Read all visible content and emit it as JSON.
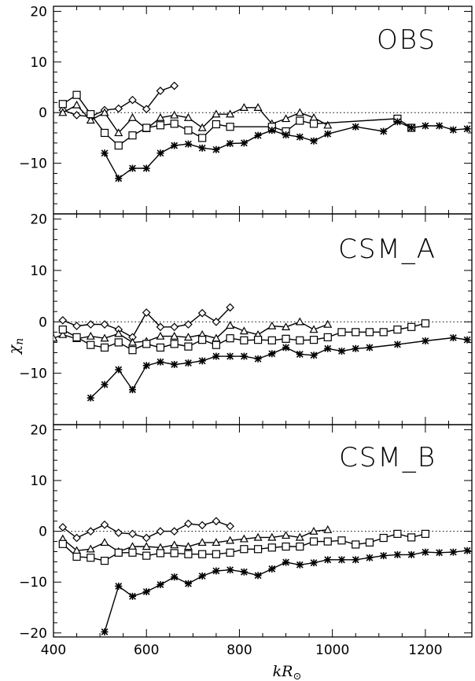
{
  "chart_data": [
    {
      "type": "line",
      "title": "OBS",
      "xlabel": "kR⊙",
      "ylabel": "χn",
      "xlim": [
        400,
        1300
      ],
      "ylim": [
        -20,
        21
      ],
      "xticks": [
        "400",
        "600",
        "800",
        "1000",
        "1200"
      ],
      "yticks": [
        "20",
        "10",
        "0",
        "−10"
      ],
      "zero_line": "dotted",
      "series": [
        {
          "marker": "diamond",
          "x": [
            420,
            450,
            480,
            510,
            540,
            570,
            600,
            630,
            660
          ],
          "y": [
            0.5,
            -0.5,
            -0.8,
            0.5,
            0.8,
            2.5,
            0.7,
            4.3,
            5.3
          ]
        },
        {
          "marker": "triangle",
          "x": [
            420,
            450,
            480,
            510,
            540,
            570,
            600,
            630,
            660,
            690,
            720,
            750,
            780,
            810,
            840,
            870,
            900,
            930,
            960,
            990
          ],
          "y": [
            0.0,
            1.5,
            -1.5,
            0.0,
            -4.0,
            -1.0,
            -3.2,
            -1.0,
            -0.5,
            -1.0,
            -3.0,
            -0.3,
            -0.3,
            1.0,
            1.0,
            -2.2,
            -1.2,
            0.0,
            -1.0,
            -2.5
          ]
        },
        {
          "marker": "square",
          "x": [
            420,
            450,
            480,
            510,
            540,
            570,
            600,
            630,
            660,
            690,
            720,
            750,
            780,
            870,
            900,
            930,
            960,
            1140,
            1170
          ],
          "y": [
            1.7,
            3.5,
            -0.3,
            -4.0,
            -6.5,
            -4.5,
            -3.0,
            -2.5,
            -2.2,
            -3.5,
            -5.0,
            -2.3,
            -2.8,
            -2.8,
            -3.7,
            -1.6,
            -2.2,
            -1.2,
            -3.0
          ]
        },
        {
          "marker": "asterisk",
          "x": [
            510,
            540,
            570,
            600,
            630,
            660,
            690,
            720,
            750,
            780,
            810,
            840,
            870,
            900,
            930,
            960,
            990,
            1050,
            1110,
            1140,
            1170,
            1200,
            1230,
            1260,
            1290
          ],
          "y": [
            -8.0,
            -13.0,
            -11.0,
            -11.0,
            -8.0,
            -6.5,
            -6.2,
            -7.0,
            -7.3,
            -6.1,
            -6.0,
            -4.5,
            -3.5,
            -4.4,
            -4.8,
            -5.6,
            -4.2,
            -2.8,
            -3.7,
            -1.8,
            -3.0,
            -2.6,
            -2.6,
            -3.4,
            -3.2
          ]
        }
      ]
    },
    {
      "type": "line",
      "title": "CSM_A",
      "xlabel": "kR⊙",
      "ylabel": "χn",
      "xlim": [
        400,
        1300
      ],
      "ylim": [
        -20,
        21
      ],
      "xticks": [
        "400",
        "600",
        "800",
        "1000",
        "1200"
      ],
      "yticks": [
        "20",
        "10",
        "0",
        "−10"
      ],
      "zero_line": "dotted",
      "series": [
        {
          "marker": "diamond",
          "x": [
            420,
            450,
            480,
            510,
            540,
            570,
            600,
            630,
            660,
            690,
            720,
            750,
            780
          ],
          "y": [
            0.3,
            -0.8,
            -0.5,
            -0.5,
            -1.5,
            -3.0,
            1.8,
            -1.0,
            -1.0,
            -0.5,
            1.7,
            0.0,
            2.8
          ]
        },
        {
          "marker": "triangle",
          "x": [
            400,
            420,
            450,
            480,
            510,
            540,
            570,
            600,
            630,
            660,
            690,
            720,
            750,
            780,
            810,
            840,
            870,
            900,
            930,
            960,
            990
          ],
          "y": [
            -3.2,
            -2.5,
            -3.3,
            -2.8,
            -3.2,
            -2.3,
            -4.0,
            -3.8,
            -2.8,
            -2.8,
            -3.0,
            -2.5,
            -3.2,
            -0.7,
            -1.8,
            -2.5,
            -0.8,
            -1.0,
            0.0,
            -1.5,
            -0.5
          ]
        },
        {
          "marker": "square",
          "x": [
            420,
            450,
            480,
            510,
            540,
            570,
            600,
            630,
            660,
            690,
            720,
            750,
            780,
            810,
            840,
            870,
            900,
            930,
            960,
            990,
            1020,
            1050,
            1080,
            1110,
            1140,
            1170,
            1200
          ],
          "y": [
            -1.5,
            -3.0,
            -4.5,
            -5.0,
            -4.0,
            -5.5,
            -4.3,
            -5.0,
            -4.3,
            -4.8,
            -3.5,
            -4.5,
            -3.2,
            -3.6,
            -3.5,
            -3.6,
            -3.3,
            -3.6,
            -3.5,
            -3.0,
            -2.0,
            -2.0,
            -2.0,
            -2.0,
            -1.5,
            -1.0,
            -0.3
          ]
        },
        {
          "marker": "asterisk",
          "x": [
            480,
            510,
            540,
            570,
            600,
            630,
            660,
            690,
            720,
            750,
            780,
            810,
            840,
            870,
            900,
            930,
            960,
            990,
            1020,
            1050,
            1080,
            1140,
            1200,
            1260,
            1290
          ],
          "y": [
            -14.8,
            -12.2,
            -9.3,
            -13.2,
            -8.5,
            -7.8,
            -8.3,
            -8.0,
            -7.6,
            -6.7,
            -6.7,
            -6.7,
            -7.2,
            -6.2,
            -5.0,
            -6.3,
            -6.5,
            -5.2,
            -5.7,
            -5.2,
            -5.0,
            -4.4,
            -3.7,
            -3.1,
            -3.5
          ]
        }
      ]
    },
    {
      "type": "line",
      "title": "CSM_B",
      "xlabel": "kR⊙",
      "ylabel": "χn",
      "xlim": [
        400,
        1300
      ],
      "ylim": [
        -20.8,
        21
      ],
      "xticks": [
        "400",
        "600",
        "800",
        "1000",
        "1200"
      ],
      "yticks": [
        "20",
        "10",
        "0",
        "−10",
        "−20"
      ],
      "zero_line": "dotted",
      "series": [
        {
          "marker": "diamond",
          "x": [
            420,
            450,
            480,
            510,
            540,
            570,
            600,
            630,
            660,
            690,
            720,
            750,
            780
          ],
          "y": [
            0.8,
            -1.3,
            0.0,
            1.3,
            -0.3,
            -0.5,
            -1.3,
            0.0,
            0.0,
            1.5,
            1.2,
            2.0,
            1.0
          ]
        },
        {
          "marker": "triangle",
          "x": [
            420,
            450,
            480,
            510,
            540,
            570,
            600,
            630,
            660,
            690,
            720,
            750,
            780,
            810,
            840,
            870,
            900,
            930,
            960,
            990
          ],
          "y": [
            -1.5,
            -3.8,
            -3.5,
            -2.2,
            -4.0,
            -3.0,
            -3.0,
            -3.2,
            -2.7,
            -3.0,
            -2.2,
            -2.2,
            -1.8,
            -1.5,
            -1.2,
            -1.2,
            -0.8,
            -1.2,
            0.0,
            0.3
          ]
        },
        {
          "marker": "square",
          "x": [
            420,
            450,
            480,
            510,
            540,
            570,
            600,
            630,
            660,
            690,
            720,
            750,
            780,
            810,
            840,
            870,
            900,
            930,
            960,
            990,
            1020,
            1050,
            1080,
            1110,
            1140,
            1170,
            1200
          ],
          "y": [
            -2.5,
            -5.0,
            -5.2,
            -5.8,
            -4.2,
            -4.2,
            -4.8,
            -4.3,
            -4.3,
            -4.5,
            -4.5,
            -4.5,
            -4.2,
            -3.5,
            -3.5,
            -3.2,
            -3.0,
            -3.0,
            -2.0,
            -2.0,
            -1.8,
            -2.6,
            -2.2,
            -1.3,
            -0.5,
            -1.2,
            -0.5
          ]
        },
        {
          "marker": "asterisk",
          "x": [
            510,
            540,
            570,
            600,
            630,
            660,
            690,
            720,
            750,
            780,
            810,
            840,
            870,
            900,
            930,
            960,
            990,
            1020,
            1050,
            1080,
            1110,
            1140,
            1170,
            1200,
            1230,
            1260,
            1290
          ],
          "y": [
            -19.8,
            -10.8,
            -12.8,
            -11.9,
            -10.5,
            -9.0,
            -10.3,
            -8.8,
            -7.8,
            -7.6,
            -8.0,
            -8.7,
            -7.4,
            -6.1,
            -6.6,
            -6.2,
            -5.6,
            -5.6,
            -5.6,
            -5.2,
            -4.8,
            -4.6,
            -4.6,
            -4.1,
            -4.2,
            -4.1,
            -3.8
          ]
        }
      ]
    }
  ]
}
